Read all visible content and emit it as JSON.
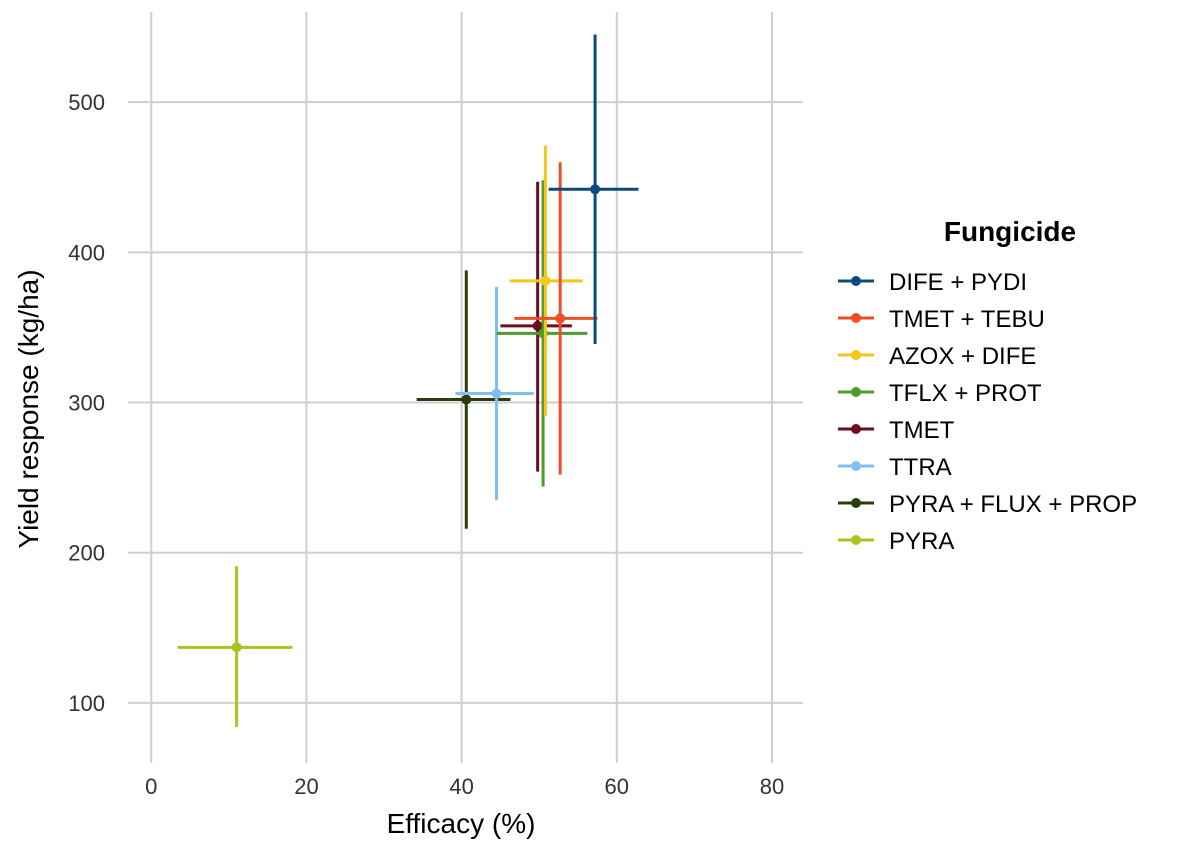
{
  "chart_data": {
    "type": "scatter",
    "xlabel": "Efficacy (%)",
    "ylabel": "Yield response (kg/ha)",
    "xlim": [
      -3,
      84
    ],
    "ylim": [
      60,
      560
    ],
    "x_ticks": [
      0,
      20,
      40,
      60,
      80
    ],
    "y_ticks": [
      100,
      200,
      300,
      400,
      500
    ],
    "x_tick_labels": [
      "0",
      "20",
      "40",
      "60",
      "80"
    ],
    "y_tick_labels": [
      "100",
      "200",
      "300",
      "400",
      "500"
    ],
    "grid": true,
    "legend": {
      "title": "Fungicide",
      "placement": "right"
    },
    "error_bars": "horizontal and vertical",
    "series": [
      {
        "name": "DIFE + PYDI",
        "color": "#0b4a80",
        "x": 57.2,
        "y": 442,
        "x_low": 51.2,
        "x_high": 62.8,
        "y_low": 339,
        "y_high": 545
      },
      {
        "name": "TMET + TEBU",
        "color": "#f04e23",
        "x": 52.7,
        "y": 356,
        "x_low": 46.8,
        "x_high": 57.5,
        "y_low": 252,
        "y_high": 460
      },
      {
        "name": "AZOX + DIFE",
        "color": "#f5c518",
        "x": 50.8,
        "y": 381,
        "x_low": 46.2,
        "x_high": 55.6,
        "y_low": 291,
        "y_high": 471
      },
      {
        "name": "TFLX + PROT",
        "color": "#4e9a2a",
        "x": 50.5,
        "y": 346,
        "x_low": 44.5,
        "x_high": 56.2,
        "y_low": 244,
        "y_high": 448
      },
      {
        "name": "TMET",
        "color": "#6b0a22",
        "x": 49.8,
        "y": 351,
        "x_low": 45.0,
        "x_high": 54.2,
        "y_low": 254,
        "y_high": 447
      },
      {
        "name": "TTRA",
        "color": "#7fc0f0",
        "x": 44.5,
        "y": 306,
        "x_low": 39.2,
        "x_high": 49.3,
        "y_low": 235,
        "y_high": 377
      },
      {
        "name": "PYRA + FLUX + PROP",
        "color": "#2b3d0f",
        "x": 40.6,
        "y": 302,
        "x_low": 34.2,
        "x_high": 46.3,
        "y_low": 216,
        "y_high": 388
      },
      {
        "name": "PYRA",
        "color": "#a9c31f",
        "x": 11.0,
        "y": 137,
        "x_low": 3.4,
        "x_high": 18.2,
        "y_low": 84,
        "y_high": 191
      }
    ]
  }
}
